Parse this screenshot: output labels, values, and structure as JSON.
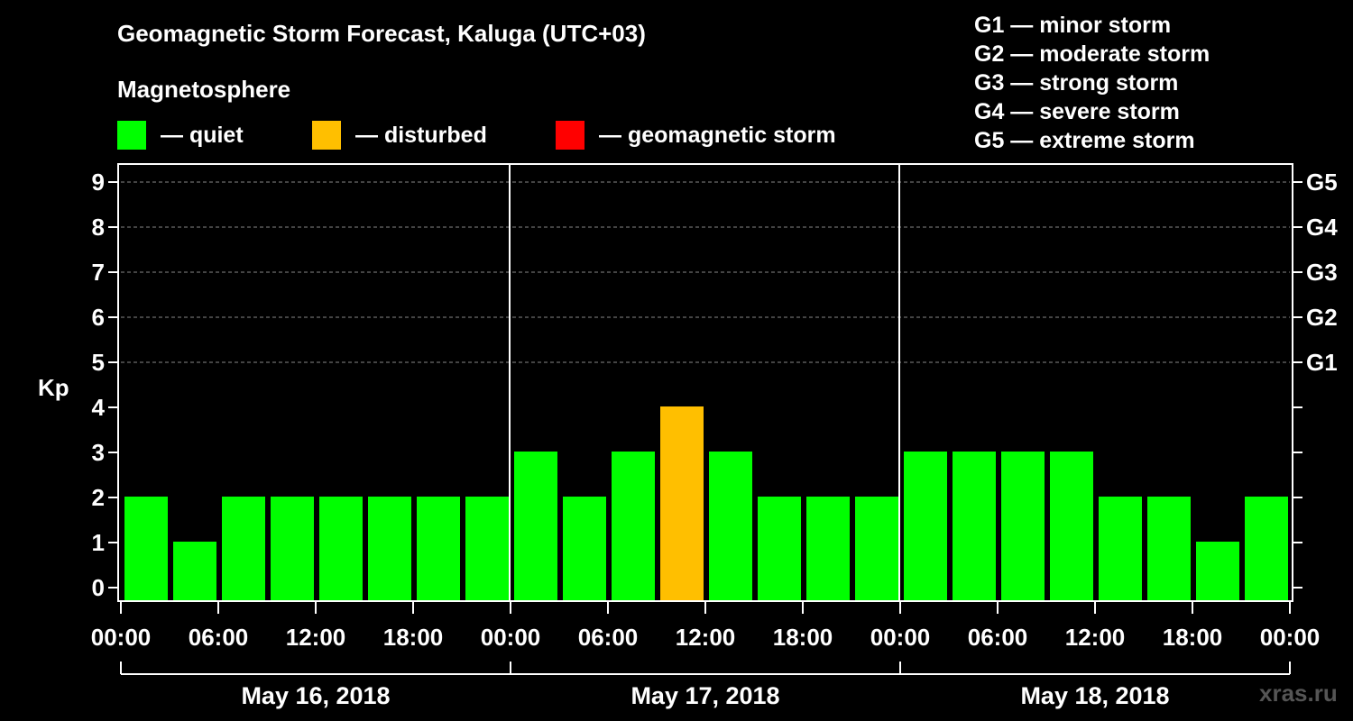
{
  "chart_data": {
    "type": "bar",
    "title": "Geomagnetic Storm Forecast, Kaluga (UTC+03)",
    "legend_title": "Magnetosphere",
    "legend": [
      {
        "key": "quiet",
        "label": "— quiet",
        "color": "#00ff00"
      },
      {
        "key": "disturbed",
        "label": "— disturbed",
        "color": "#ffbf00"
      },
      {
        "key": "storm",
        "label": "— geomagnetic storm",
        "color": "#ff0000"
      }
    ],
    "storm_scale": [
      "G1 — minor storm",
      "G2 — moderate storm",
      "G3 — strong storm",
      "G4 — severe storm",
      "G5 — extreme storm"
    ],
    "ylabel": "Kp",
    "ylim": [
      0,
      9
    ],
    "y_ticks": [
      "0",
      "1",
      "2",
      "3",
      "4",
      "5",
      "6",
      "7",
      "8",
      "9"
    ],
    "right_ticks": [
      {
        "kp": 5,
        "label": "G1"
      },
      {
        "kp": 6,
        "label": "G2"
      },
      {
        "kp": 7,
        "label": "G3"
      },
      {
        "kp": 8,
        "label": "G4"
      },
      {
        "kp": 9,
        "label": "G5"
      }
    ],
    "x_tick_labels": [
      "00:00",
      "06:00",
      "12:00",
      "18:00",
      "00:00",
      "06:00",
      "12:00",
      "18:00",
      "00:00",
      "06:00",
      "12:00",
      "18:00",
      "00:00"
    ],
    "days": [
      "May 16, 2018",
      "May 17, 2018",
      "May 18, 2018"
    ],
    "interval_hours": 3,
    "values": [
      2,
      1,
      2,
      2,
      2,
      2,
      2,
      2,
      3,
      2,
      3,
      4,
      3,
      2,
      2,
      2,
      3,
      3,
      3,
      3,
      2,
      2,
      1,
      2
    ],
    "levels": [
      "quiet",
      "quiet",
      "quiet",
      "quiet",
      "quiet",
      "quiet",
      "quiet",
      "quiet",
      "quiet",
      "quiet",
      "quiet",
      "disturbed",
      "quiet",
      "quiet",
      "quiet",
      "quiet",
      "quiet",
      "quiet",
      "quiet",
      "quiet",
      "quiet",
      "quiet",
      "quiet",
      "quiet"
    ],
    "gridlines_from": 5
  },
  "watermark": "xras.ru"
}
